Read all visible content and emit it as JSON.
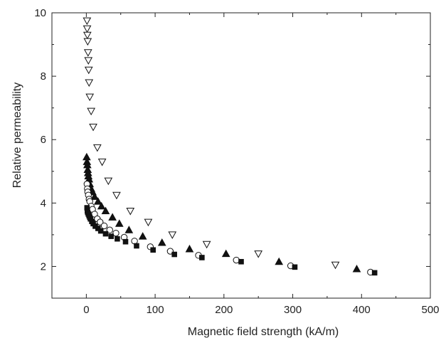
{
  "chart_data": {
    "type": "scatter",
    "title": "",
    "xlabel": "Magnetic field strength (kA/m)",
    "ylabel": "Relative permeability",
    "xlim": [
      -50,
      500
    ],
    "ylim": [
      1,
      10
    ],
    "xticks": [
      "0",
      "100",
      "200",
      "300",
      "400",
      "500"
    ],
    "yticks": [
      "2",
      "4",
      "6",
      "8",
      "10"
    ],
    "grid": false,
    "legend": "none",
    "series": [
      {
        "marker": "triangle-down-open",
        "points": [
          [
            1,
            9.75
          ],
          [
            1.2,
            9.5
          ],
          [
            1.5,
            9.3
          ],
          [
            2,
            9.1
          ],
          [
            2.5,
            8.75
          ],
          [
            3,
            8.5
          ],
          [
            3.5,
            8.2
          ],
          [
            4,
            7.8
          ],
          [
            5,
            7.35
          ],
          [
            7,
            6.9
          ],
          [
            10,
            6.4
          ],
          [
            16,
            5.75
          ],
          [
            23,
            5.3
          ],
          [
            32,
            4.7
          ],
          [
            44,
            4.25
          ],
          [
            64,
            3.75
          ],
          [
            90,
            3.4
          ],
          [
            125,
            3.0
          ],
          [
            175,
            2.7
          ],
          [
            250,
            2.4
          ],
          [
            362,
            2.05
          ]
        ]
      },
      {
        "marker": "triangle-up-filled",
        "points": [
          [
            0.5,
            5.45
          ],
          [
            1,
            5.3
          ],
          [
            1.5,
            5.2
          ],
          [
            2,
            5.05
          ],
          [
            2.5,
            4.95
          ],
          [
            3,
            4.85
          ],
          [
            4,
            4.75
          ],
          [
            5,
            4.6
          ],
          [
            7,
            4.45
          ],
          [
            9,
            4.35
          ],
          [
            12,
            4.2
          ],
          [
            17,
            4.05
          ],
          [
            22,
            3.9
          ],
          [
            28,
            3.75
          ],
          [
            38,
            3.55
          ],
          [
            48,
            3.35
          ],
          [
            62,
            3.15
          ],
          [
            82,
            2.95
          ],
          [
            110,
            2.75
          ],
          [
            150,
            2.55
          ],
          [
            203,
            2.4
          ],
          [
            280,
            2.15
          ],
          [
            393,
            1.92
          ]
        ]
      },
      {
        "marker": "circle-open",
        "points": [
          [
            1,
            4.6
          ],
          [
            1.5,
            4.45
          ],
          [
            2,
            4.35
          ],
          [
            3,
            4.25
          ],
          [
            4,
            4.12
          ],
          [
            5,
            4.05
          ],
          [
            7,
            3.9
          ],
          [
            9,
            3.8
          ],
          [
            12,
            3.65
          ],
          [
            16,
            3.5
          ],
          [
            20,
            3.4
          ],
          [
            26,
            3.28
          ],
          [
            34,
            3.15
          ],
          [
            43,
            3.05
          ],
          [
            55,
            2.92
          ],
          [
            70,
            2.8
          ],
          [
            93,
            2.62
          ],
          [
            122,
            2.48
          ],
          [
            163,
            2.35
          ],
          [
            218,
            2.2
          ],
          [
            297,
            2.02
          ],
          [
            413,
            1.82
          ]
        ]
      },
      {
        "marker": "square-filled",
        "points": [
          [
            1,
            3.85
          ],
          [
            1.5,
            3.75
          ],
          [
            2,
            3.7
          ],
          [
            3,
            3.65
          ],
          [
            4,
            3.6
          ],
          [
            5,
            3.55
          ],
          [
            6,
            3.5
          ],
          [
            8,
            3.42
          ],
          [
            10,
            3.35
          ],
          [
            13,
            3.27
          ],
          [
            17,
            3.2
          ],
          [
            21,
            3.12
          ],
          [
            28,
            3.03
          ],
          [
            36,
            2.95
          ],
          [
            45,
            2.87
          ],
          [
            57,
            2.78
          ],
          [
            73,
            2.65
          ],
          [
            97,
            2.52
          ],
          [
            128,
            2.38
          ],
          [
            168,
            2.28
          ],
          [
            225,
            2.15
          ],
          [
            303,
            1.98
          ],
          [
            419,
            1.8
          ]
        ]
      }
    ]
  }
}
